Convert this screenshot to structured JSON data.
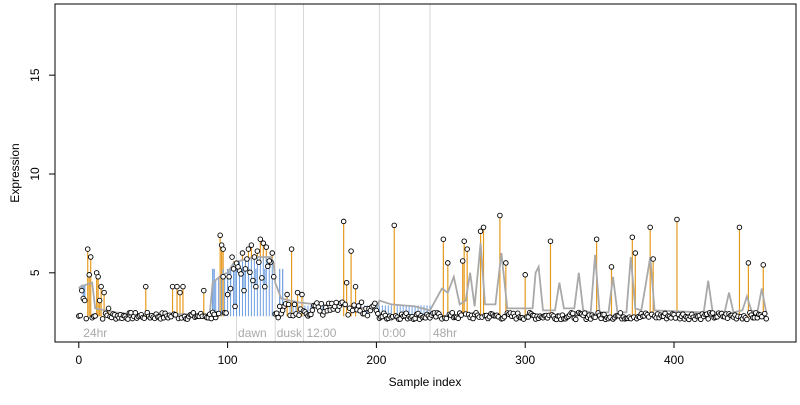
{
  "chart_data": {
    "type": "scatter",
    "title": "",
    "xlabel": "Sample index",
    "ylabel": "Expression",
    "xlim": [
      -16,
      482
    ],
    "ylim": [
      1.5,
      18.6
    ],
    "xticks": [
      0,
      100,
      200,
      300,
      400
    ],
    "yticks": [
      5,
      10,
      15
    ],
    "grid": false,
    "legend": "none",
    "colors": {
      "points_edge": "#000000",
      "points_fill": "#ffffff",
      "up_segment": "#e69a1e",
      "down_segment": "#6f9fe0",
      "smooth_line": "#a9a9a9",
      "separator": "#d8d8d8",
      "region_label": "#a9a9a9"
    },
    "baseline": 2.8,
    "region_separators": [
      106,
      132,
      151,
      202,
      236
    ],
    "region_labels": [
      {
        "x": 3,
        "text": "24hr"
      },
      {
        "x": 107,
        "text": "dawn"
      },
      {
        "x": 133,
        "text": "dusk"
      },
      {
        "x": 153,
        "text": "12:00"
      },
      {
        "x": 204,
        "text": "0:00"
      },
      {
        "x": 238,
        "text": "48hr"
      }
    ],
    "peaks": [
      {
        "x": 6,
        "y": 6.2
      },
      {
        "x": 7,
        "y": 4.9
      },
      {
        "x": 8,
        "y": 5.8
      },
      {
        "x": 12,
        "y": 5.0
      },
      {
        "x": 13,
        "y": 4.8
      },
      {
        "x": 14,
        "y": 3.6
      },
      {
        "x": 15,
        "y": 4.3
      },
      {
        "x": 17,
        "y": 4.0
      },
      {
        "x": 20,
        "y": 3.2
      },
      {
        "x": 45,
        "y": 4.3
      },
      {
        "x": 63,
        "y": 4.3
      },
      {
        "x": 66,
        "y": 4.3
      },
      {
        "x": 68,
        "y": 4.0
      },
      {
        "x": 70,
        "y": 4.3
      },
      {
        "x": 84,
        "y": 4.1
      },
      {
        "x": 95,
        "y": 6.9
      },
      {
        "x": 96,
        "y": 6.4
      },
      {
        "x": 97,
        "y": 6.2
      },
      {
        "x": 104,
        "y": 5.2
      },
      {
        "x": 107,
        "y": 5.3
      },
      {
        "x": 110,
        "y": 6.0
      },
      {
        "x": 112,
        "y": 5.2
      },
      {
        "x": 114,
        "y": 6.2
      },
      {
        "x": 116,
        "y": 6.4
      },
      {
        "x": 118,
        "y": 5.8
      },
      {
        "x": 120,
        "y": 6.1
      },
      {
        "x": 122,
        "y": 6.7
      },
      {
        "x": 124,
        "y": 6.5
      },
      {
        "x": 126,
        "y": 6.3
      },
      {
        "x": 128,
        "y": 5.6
      },
      {
        "x": 130,
        "y": 6.0
      },
      {
        "x": 140,
        "y": 3.9
      },
      {
        "x": 143,
        "y": 6.2
      },
      {
        "x": 147,
        "y": 4.0
      },
      {
        "x": 150,
        "y": 3.9
      },
      {
        "x": 178,
        "y": 7.6
      },
      {
        "x": 180,
        "y": 4.5
      },
      {
        "x": 183,
        "y": 6.1
      },
      {
        "x": 186,
        "y": 4.3
      },
      {
        "x": 212,
        "y": 7.4
      },
      {
        "x": 245,
        "y": 6.7
      },
      {
        "x": 248,
        "y": 5.5
      },
      {
        "x": 258,
        "y": 5.6
      },
      {
        "x": 259,
        "y": 6.6
      },
      {
        "x": 261,
        "y": 6.2
      },
      {
        "x": 270,
        "y": 7.1
      },
      {
        "x": 272,
        "y": 7.3
      },
      {
        "x": 283,
        "y": 7.9
      },
      {
        "x": 287,
        "y": 5.5
      },
      {
        "x": 300,
        "y": 4.9
      },
      {
        "x": 317,
        "y": 6.6
      },
      {
        "x": 348,
        "y": 6.7
      },
      {
        "x": 358,
        "y": 5.3
      },
      {
        "x": 372,
        "y": 6.8
      },
      {
        "x": 374,
        "y": 6.0
      },
      {
        "x": 384,
        "y": 7.3
      },
      {
        "x": 386,
        "y": 5.7
      },
      {
        "x": 402,
        "y": 7.7
      },
      {
        "x": 444,
        "y": 7.3
      },
      {
        "x": 450,
        "y": 5.5
      },
      {
        "x": 460,
        "y": 5.4
      }
    ],
    "dips": [
      {
        "x": 2,
        "y": 4.1
      },
      {
        "x": 3,
        "y": 3.7
      },
      {
        "x": 4,
        "y": 3.6
      },
      {
        "x": 90,
        "y": 3.0
      },
      {
        "x": 91,
        "y": 2.9
      },
      {
        "x": 97,
        "y": 4.8
      },
      {
        "x": 100,
        "y": 3.9
      },
      {
        "x": 101,
        "y": 4.8
      },
      {
        "x": 102,
        "y": 4.2
      },
      {
        "x": 105,
        "y": 3.3
      },
      {
        "x": 111,
        "y": 4.1
      },
      {
        "x": 119,
        "y": 4.3
      },
      {
        "x": 125,
        "y": 4.3
      },
      {
        "x": 135,
        "y": 3.3
      },
      {
        "x": 137,
        "y": 3.1
      }
    ],
    "smooth_line": [
      {
        "x": 0,
        "y": 4.2
      },
      {
        "x": 1,
        "y": 4.3
      },
      {
        "x": 5,
        "y": 4.4
      },
      {
        "x": 9,
        "y": 4.5
      },
      {
        "x": 11,
        "y": 3.2
      },
      {
        "x": 25,
        "y": 3.0
      },
      {
        "x": 35,
        "y": 2.9
      },
      {
        "x": 88,
        "y": 2.9
      },
      {
        "x": 90,
        "y": 4.5
      },
      {
        "x": 96,
        "y": 4.9
      },
      {
        "x": 100,
        "y": 5.0
      },
      {
        "x": 104,
        "y": 5.5
      },
      {
        "x": 112,
        "y": 5.7
      },
      {
        "x": 120,
        "y": 5.8
      },
      {
        "x": 129,
        "y": 5.8
      },
      {
        "x": 131,
        "y": 5.5
      },
      {
        "x": 132,
        "y": 4.5
      },
      {
        "x": 136,
        "y": 3.7
      },
      {
        "x": 148,
        "y": 3.5
      },
      {
        "x": 160,
        "y": 3.4
      },
      {
        "x": 195,
        "y": 3.2
      },
      {
        "x": 200,
        "y": 3.1
      },
      {
        "x": 202,
        "y": 3.6
      },
      {
        "x": 210,
        "y": 3.4
      },
      {
        "x": 226,
        "y": 3.3
      },
      {
        "x": 236,
        "y": 3.1
      },
      {
        "x": 244,
        "y": 4.2
      },
      {
        "x": 248,
        "y": 4.0
      },
      {
        "x": 252,
        "y": 4.8
      },
      {
        "x": 256,
        "y": 3.4
      },
      {
        "x": 260,
        "y": 3.6
      },
      {
        "x": 263,
        "y": 5.0
      },
      {
        "x": 266,
        "y": 3.3
      },
      {
        "x": 270,
        "y": 6.5
      },
      {
        "x": 273,
        "y": 3.4
      },
      {
        "x": 280,
        "y": 3.4
      },
      {
        "x": 284,
        "y": 6.0
      },
      {
        "x": 288,
        "y": 3.2
      },
      {
        "x": 305,
        "y": 3.2
      },
      {
        "x": 307,
        "y": 5.0
      },
      {
        "x": 309,
        "y": 5.3
      },
      {
        "x": 312,
        "y": 3.1
      },
      {
        "x": 320,
        "y": 3.1
      },
      {
        "x": 323,
        "y": 4.5
      },
      {
        "x": 326,
        "y": 3.2
      },
      {
        "x": 333,
        "y": 3.2
      },
      {
        "x": 336,
        "y": 5.0
      },
      {
        "x": 339,
        "y": 3.1
      },
      {
        "x": 344,
        "y": 3.0
      },
      {
        "x": 347,
        "y": 5.9
      },
      {
        "x": 350,
        "y": 3.0
      },
      {
        "x": 356,
        "y": 3.0
      },
      {
        "x": 359,
        "y": 4.8
      },
      {
        "x": 362,
        "y": 3.0
      },
      {
        "x": 368,
        "y": 3.0
      },
      {
        "x": 371,
        "y": 5.8
      },
      {
        "x": 374,
        "y": 3.2
      },
      {
        "x": 378,
        "y": 3.1
      },
      {
        "x": 381,
        "y": 4.4
      },
      {
        "x": 384,
        "y": 5.8
      },
      {
        "x": 387,
        "y": 3.1
      },
      {
        "x": 420,
        "y": 3.0
      },
      {
        "x": 423,
        "y": 4.6
      },
      {
        "x": 426,
        "y": 3.0
      },
      {
        "x": 434,
        "y": 3.0
      },
      {
        "x": 437,
        "y": 4.0
      },
      {
        "x": 440,
        "y": 3.0
      },
      {
        "x": 446,
        "y": 3.1
      },
      {
        "x": 449,
        "y": 3.8
      },
      {
        "x": 452,
        "y": 3.1
      },
      {
        "x": 456,
        "y": 3.0
      },
      {
        "x": 459,
        "y": 4.2
      },
      {
        "x": 462,
        "y": 3.0
      }
    ]
  }
}
